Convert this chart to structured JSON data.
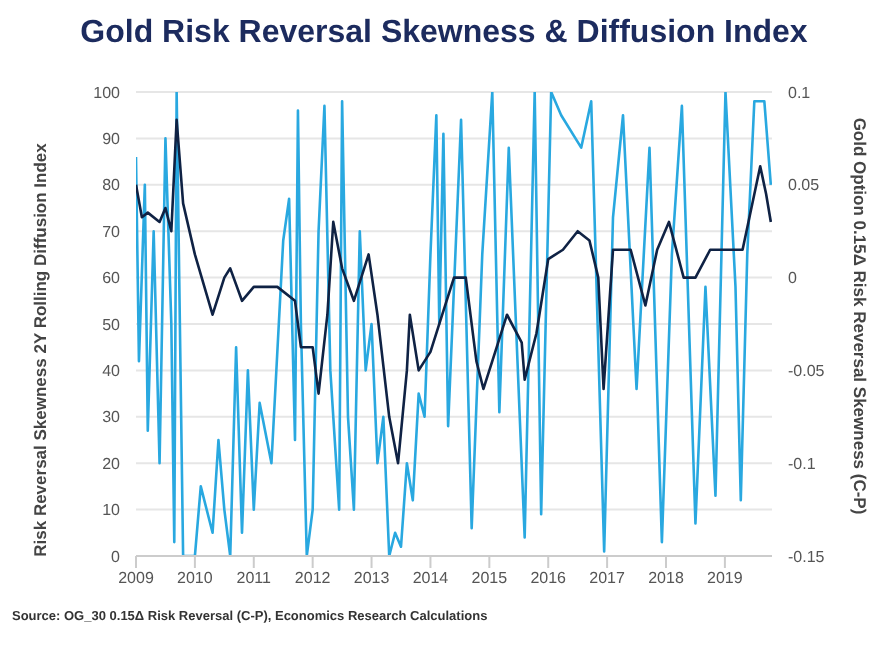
{
  "chart_data": {
    "type": "line",
    "title": "Gold Risk Reversal Skewness & Diffusion Index",
    "ylabel": "Risk Reversal Skewness 2Y Rolling Diffusion Index",
    "y2label": "Gold Option 0.15Δ Risk Reversal Skewness (C-P)",
    "annotations": [
      "Source: OG_30 0.15Δ Risk Reversal (C-P), Economics Research Calculations"
    ],
    "xlim": [
      2009,
      2019.8
    ],
    "xticks": [
      2009,
      2010,
      2011,
      2012,
      2013,
      2014,
      2015,
      2016,
      2017,
      2018,
      2019
    ],
    "ylim": [
      0,
      100
    ],
    "yticks": [
      0,
      10,
      20,
      30,
      40,
      50,
      60,
      70,
      80,
      90,
      100
    ],
    "y2lim": [
      -0.15,
      0.1
    ],
    "y2ticks": [
      -0.15,
      -0.1,
      -0.05,
      0,
      0.05,
      0.1
    ],
    "grid": "y",
    "legend": false,
    "marker": "none",
    "line_style": "solid",
    "series": [
      {
        "color": "#29a8e0",
        "x": [
          2009,
          2009.05,
          2009.15,
          2009.2,
          2009.3,
          2009.4,
          2009.5,
          2009.6,
          2009.65,
          2009.69,
          2009.8,
          2010,
          2010.1,
          2010.3,
          2010.4,
          2010.5,
          2010.6,
          2010.7,
          2010.8,
          2010.9,
          2011,
          2011.1,
          2011.3,
          2011.5,
          2011.6,
          2011.7,
          2011.75,
          2011.8,
          2011.9,
          2012,
          2012.1,
          2012.2,
          2012.3,
          2012.45,
          2012.5,
          2012.6,
          2012.7,
          2012.8,
          2012.9,
          2013,
          2013.1,
          2013.2,
          2013.3,
          2013.4,
          2013.5,
          2013.6,
          2013.7,
          2013.8,
          2013.9,
          2014,
          2014.1,
          2014.15,
          2014.22,
          2014.3,
          2014.52,
          2014.7,
          2014.88,
          2015.05,
          2015.17,
          2015.33,
          2015.6,
          2015.77,
          2015.88,
          2016.05,
          2016.22,
          2016.56,
          2016.73,
          2016.95,
          2017.1,
          2017.27,
          2017.5,
          2017.72,
          2017.93,
          2018.1,
          2018.27,
          2018.5,
          2018.67,
          2018.84,
          2019.01,
          2019.18,
          2019.27,
          2019.38,
          2019.5,
          2019.67,
          2019.78
        ],
        "values": [
          86,
          42,
          80,
          27,
          70,
          20,
          90,
          50,
          3,
          100,
          0,
          0,
          15,
          5,
          25,
          10,
          0,
          45,
          5,
          40,
          10,
          33,
          20,
          68,
          77,
          25,
          96,
          50,
          0,
          10,
          70,
          97,
          40,
          10,
          98,
          30,
          10,
          70,
          40,
          50,
          20,
          30,
          0,
          5,
          2,
          20,
          12,
          35,
          30,
          65,
          95,
          50,
          91,
          28,
          94,
          6,
          65,
          100,
          31,
          88,
          4,
          100,
          9,
          100,
          95,
          88,
          98,
          1,
          73,
          95,
          36,
          88,
          3,
          65,
          97,
          7,
          58,
          13,
          100,
          58,
          12,
          65,
          98,
          98,
          80
        ],
        "axis": "y"
      },
      {
        "color": "#0f2244",
        "x": [
          2009,
          2009.1,
          2009.2,
          2009.4,
          2009.5,
          2009.6,
          2009.69,
          2009.8,
          2010,
          2010.3,
          2010.5,
          2010.6,
          2010.8,
          2011,
          2011.4,
          2011.7,
          2011.8,
          2012,
          2012.1,
          2012.25,
          2012.35,
          2012.5,
          2012.7,
          2012.95,
          2013.1,
          2013.3,
          2013.45,
          2013.6,
          2013.65,
          2013.8,
          2014,
          2014.2,
          2014.4,
          2014.6,
          2014.78,
          2014.9,
          2015.1,
          2015.3,
          2015.55,
          2015.6,
          2015.8,
          2016,
          2016.25,
          2016.5,
          2016.7,
          2016.85,
          2016.94,
          2017.1,
          2017.4,
          2017.65,
          2017.85,
          2018.05,
          2018.3,
          2018.5,
          2018.75,
          2019,
          2019.3,
          2019.4,
          2019.6,
          2019.7,
          2019.78
        ],
        "values": [
          0.05,
          0.0325,
          0.035,
          0.03,
          0.0375,
          0.025,
          0.085,
          0.04,
          0.0125,
          -0.02,
          0,
          0.005,
          -0.0125,
          -0.005,
          -0.005,
          -0.0125,
          -0.0375,
          -0.0375,
          -0.0625,
          -0.02,
          0.03,
          0.005,
          -0.0125,
          0.0125,
          -0.02,
          -0.075,
          -0.1,
          -0.05,
          -0.02,
          -0.05,
          -0.04,
          -0.02,
          0,
          0,
          -0.045,
          -0.06,
          -0.04,
          -0.02,
          -0.035,
          -0.055,
          -0.03,
          0.01,
          0.015,
          0.025,
          0.02,
          0,
          -0.06,
          0.015,
          0.015,
          -0.015,
          0.015,
          0.03,
          0,
          0,
          0.015,
          0.015,
          0.015,
          0.03,
          0.06,
          0.045,
          0.03
        ],
        "axis": "y2"
      }
    ]
  }
}
